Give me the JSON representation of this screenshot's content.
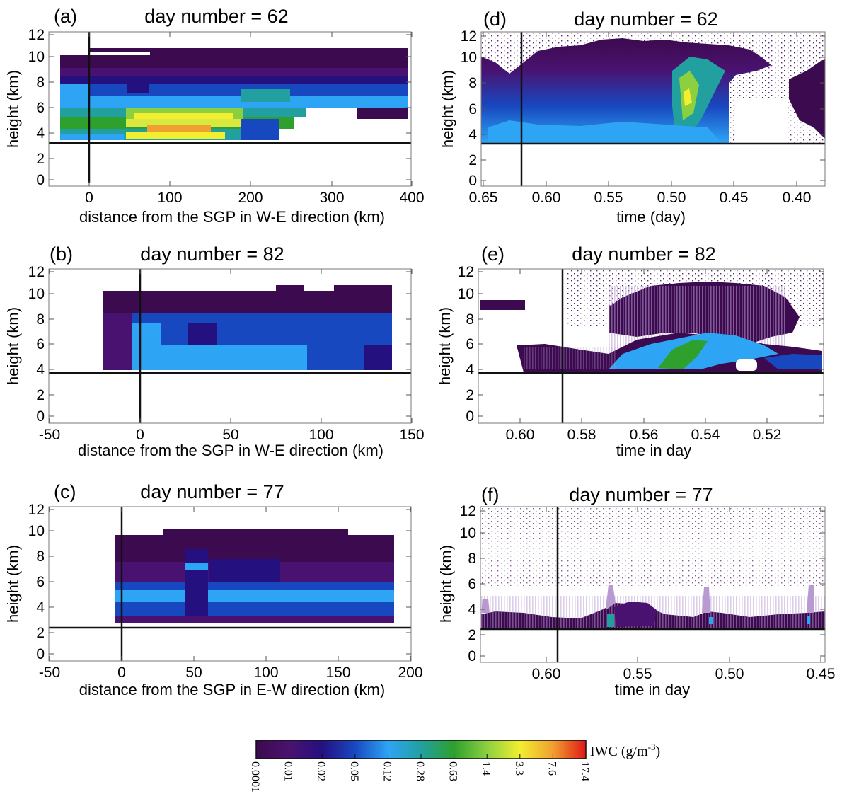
{
  "panels": [
    {
      "letter": "(a)",
      "title": "day number = 62",
      "xlabel": "distance from the SGP in W-E direction (km)",
      "ylabel": "height (km)",
      "xticks": [
        "0",
        "100",
        "200",
        "300",
        "400"
      ],
      "yticks": [
        "0",
        "2",
        "4",
        "6",
        "8",
        "10",
        "12"
      ]
    },
    {
      "letter": "(b)",
      "title": "day number = 82",
      "xlabel": "distance from the SGP in W-E direction (km)",
      "ylabel": "height (km)",
      "xticks": [
        "-50",
        "0",
        "50",
        "100",
        "150"
      ],
      "yticks": [
        "0",
        "2",
        "4",
        "6",
        "8",
        "10",
        "12"
      ]
    },
    {
      "letter": "(c)",
      "title": "day number = 77",
      "xlabel": "distance from the SGP in E-W direction (km)",
      "ylabel": "height (km)",
      "xticks": [
        "-50",
        "0",
        "50",
        "100",
        "150",
        "200"
      ],
      "yticks": [
        "0",
        "2",
        "4",
        "6",
        "8",
        "10",
        "12"
      ]
    },
    {
      "letter": "(d)",
      "title": "day number = 62",
      "xlabel": "time (day)",
      "ylabel": "height (km)",
      "xticks": [
        "0.65",
        "0.60",
        "0.55",
        "0.50",
        "0.45",
        "0.40"
      ],
      "yticks": [
        "0",
        "2",
        "4",
        "6",
        "8",
        "10",
        "12"
      ]
    },
    {
      "letter": "(e)",
      "title": "day number = 82",
      "xlabel": "time in day",
      "ylabel": "height (km)",
      "xticks": [
        "0.60",
        "0.58",
        "0.56",
        "0.54",
        "0.52"
      ],
      "yticks": [
        "0",
        "2",
        "4",
        "6",
        "8",
        "10",
        "12"
      ]
    },
    {
      "letter": "(f)",
      "title": "day number = 77",
      "xlabel": "time in day",
      "ylabel": "height (km)",
      "xticks": [
        "0.60",
        "0.55",
        "0.50",
        "0.45"
      ],
      "yticks": [
        "0",
        "2",
        "4",
        "6",
        "8",
        "10",
        "12"
      ]
    }
  ],
  "colorbar": {
    "label": "IWC (g/m",
    "label_sup": "-3",
    "label_end": ")",
    "ticks": [
      "0.0001",
      "0.01",
      "0.02",
      "0.05",
      "0.12",
      "0.28",
      "0.63",
      "1.4",
      "3.3",
      "7.6",
      "17.4"
    ],
    "colors": [
      "#3c0a4e",
      "#4a1270",
      "#251080",
      "#1848c0",
      "#2ea4f4",
      "#22a0a0",
      "#2ea02e",
      "#8cd040",
      "#f2ee30",
      "#f0a030",
      "#e01818"
    ]
  },
  "chart_data": [
    {
      "type": "heatmap",
      "id": "a",
      "title": "day number = 62",
      "xlabel": "distance from the SGP in W-E direction (km)",
      "ylabel": "height (km)",
      "xlim": [
        -50,
        400
      ],
      "ylim": [
        0,
        12
      ],
      "marker_x": 0,
      "marker_y": 3.3,
      "iwc_profile_by_height": [
        {
          "height_range": [
            3.5,
            5
          ],
          "iwc_max": 3.3
        },
        {
          "height_range": [
            5,
            7
          ],
          "iwc_max": 1.4
        },
        {
          "height_range": [
            7,
            9
          ],
          "iwc_max": 0.12
        },
        {
          "height_range": [
            9,
            10.8
          ],
          "iwc_max": 0.0001
        }
      ]
    },
    {
      "type": "heatmap",
      "id": "b",
      "title": "day number = 82",
      "xlabel": "distance from the SGP in W-E direction (km)",
      "ylabel": "height (km)",
      "xlim": [
        -50,
        150
      ],
      "ylim": [
        0,
        12
      ],
      "marker_x": 0,
      "marker_y": 3.7,
      "iwc_profile_by_height": [
        {
          "height_range": [
            4,
            6
          ],
          "iwc_max": 0.12
        },
        {
          "height_range": [
            6,
            8.5
          ],
          "iwc_max": 0.05
        },
        {
          "height_range": [
            8.5,
            10.4
          ],
          "iwc_max": 0.0001
        }
      ]
    },
    {
      "type": "heatmap",
      "id": "c",
      "title": "day number = 77",
      "xlabel": "distance from the SGP in E-W direction (km)",
      "ylabel": "height (km)",
      "xlim": [
        -50,
        200
      ],
      "ylim": [
        0,
        12
      ],
      "marker_x": 0,
      "marker_y": 2.4,
      "iwc_profile_by_height": [
        {
          "height_range": [
            3,
            6
          ],
          "iwc_max": 0.12
        },
        {
          "height_range": [
            6,
            9.7
          ],
          "iwc_max": 0.02
        }
      ]
    },
    {
      "type": "heatmap",
      "id": "d",
      "title": "day number = 62",
      "xlabel": "time (day)",
      "ylabel": "height (km)",
      "xlim": [
        0.65,
        0.375
      ],
      "ylim": [
        0,
        12.3
      ],
      "marker_x": 0.618,
      "marker_y": 3.3
    },
    {
      "type": "heatmap",
      "id": "e",
      "title": "day number = 82",
      "xlabel": "time in day",
      "ylabel": "height (km)",
      "xlim": [
        0.612,
        0.503
      ],
      "ylim": [
        0,
        12.3
      ],
      "marker_x": 0.586,
      "marker_y": 3.7
    },
    {
      "type": "heatmap",
      "id": "f",
      "title": "day number = 77",
      "xlabel": "time in day",
      "ylabel": "height (km)",
      "xlim": [
        0.625,
        0.45
      ],
      "ylim": [
        0,
        12.3
      ],
      "marker_x": 0.595,
      "marker_y": 2.4
    }
  ]
}
